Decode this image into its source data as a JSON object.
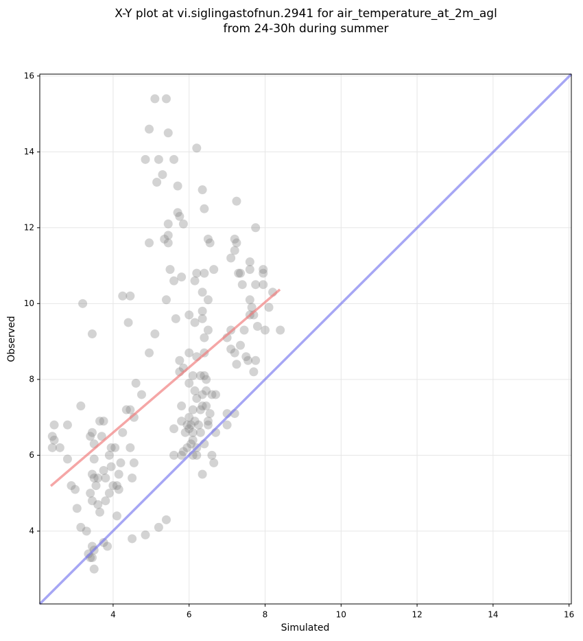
{
  "chart_data": {
    "type": "scatter",
    "title": [
      "X-Y plot at vi.siglingastofnun.2941 for air_temperature_at_2m_agl",
      "from 24-30h during summer"
    ],
    "x_label": "Simulated",
    "y_label": "Observed",
    "xlim": [
      2.07,
      16.06
    ],
    "ylim": [
      2.08,
      16.05
    ],
    "xticks": [
      4,
      6,
      8,
      10,
      12,
      14,
      16
    ],
    "yticks": [
      4,
      6,
      8,
      10,
      12,
      14,
      16
    ],
    "grid": true,
    "series": [
      {
        "color": "#808080",
        "x": [
          2.4,
          2.45,
          2.4,
          2.45,
          2.6,
          2.8,
          2.8,
          2.9,
          3.0,
          3.05,
          3.15,
          3.2,
          3.15,
          3.3,
          3.35,
          3.4,
          3.45,
          3.45,
          3.5,
          3.5,
          3.4,
          3.45,
          3.45,
          3.5,
          3.45,
          3.5,
          3.5,
          3.55,
          3.6,
          3.4,
          3.45,
          3.6,
          3.65,
          3.65,
          3.7,
          3.75,
          3.75,
          3.8,
          3.8,
          3.75,
          3.85,
          3.9,
          3.9,
          3.95,
          3.95,
          4.0,
          4.05,
          4.1,
          4.1,
          4.15,
          4.15,
          4.2,
          4.25,
          4.25,
          4.35,
          4.4,
          4.45,
          4.45,
          4.45,
          4.5,
          4.5,
          4.55,
          4.55,
          4.6,
          4.75,
          4.85,
          4.85,
          4.95,
          4.95,
          4.95,
          5.1,
          5.1,
          5.15,
          5.2,
          5.2,
          5.3,
          5.35,
          5.4,
          5.4,
          5.4,
          5.45,
          5.45,
          5.45,
          5.45,
          5.5,
          5.6,
          5.6,
          5.6,
          5.6,
          5.65,
          5.7,
          5.7,
          5.75,
          5.75,
          5.75,
          5.8,
          5.8,
          5.8,
          5.8,
          5.85,
          5.85,
          5.85,
          5.9,
          5.95,
          5.95,
          6.0,
          6.0,
          6.0,
          6.0,
          6.0,
          6.05,
          6.05,
          6.1,
          6.1,
          6.1,
          6.1,
          6.1,
          6.15,
          6.15,
          6.15,
          6.15,
          6.2,
          6.2,
          6.2,
          6.2,
          6.2,
          6.2,
          6.25,
          6.3,
          6.3,
          6.3,
          6.35,
          6.35,
          6.35,
          6.35,
          6.35,
          6.35,
          6.35,
          6.4,
          6.4,
          6.4,
          6.4,
          6.4,
          6.4,
          6.45,
          6.45,
          6.45,
          6.5,
          6.5,
          6.5,
          6.5,
          6.5,
          6.55,
          6.55,
          6.6,
          6.6,
          6.65,
          6.65,
          6.7,
          6.7,
          7.0,
          7.0,
          7.0,
          7.1,
          7.1,
          7.1,
          7.2,
          7.2,
          7.2,
          7.2,
          7.25,
          7.25,
          7.25,
          7.3,
          7.35,
          7.35,
          7.4,
          7.45,
          7.5,
          7.55,
          7.6,
          7.6,
          7.6,
          7.6,
          7.65,
          7.7,
          7.7,
          7.75,
          7.75,
          7.75,
          7.8,
          7.95,
          7.95,
          7.95,
          8.0,
          8.1,
          8.2,
          8.4
        ],
        "y": [
          6.5,
          6.4,
          6.2,
          6.8,
          6.2,
          6.8,
          5.9,
          5.2,
          5.1,
          4.6,
          7.3,
          10.0,
          4.1,
          4.0,
          3.4,
          3.3,
          3.3,
          3.6,
          3.5,
          3.0,
          6.5,
          9.2,
          6.6,
          6.3,
          5.5,
          5.9,
          5.4,
          5.2,
          5.4,
          5.0,
          4.8,
          4.7,
          4.5,
          6.9,
          6.5,
          6.9,
          5.6,
          5.4,
          4.8,
          3.7,
          3.6,
          6.0,
          5.0,
          5.7,
          6.2,
          5.2,
          6.2,
          5.2,
          4.4,
          5.5,
          5.1,
          5.8,
          6.6,
          10.2,
          7.2,
          9.5,
          10.2,
          7.2,
          6.2,
          5.4,
          3.8,
          5.8,
          7.0,
          7.9,
          7.6,
          3.9,
          13.8,
          14.6,
          11.6,
          8.7,
          15.4,
          9.2,
          13.2,
          13.8,
          4.1,
          13.4,
          11.7,
          15.4,
          10.1,
          4.3,
          14.5,
          12.1,
          11.8,
          11.6,
          10.9,
          13.8,
          10.6,
          6.7,
          6.0,
          9.6,
          13.1,
          12.4,
          12.3,
          8.5,
          8.2,
          10.7,
          7.3,
          6.9,
          6.0,
          12.1,
          8.3,
          6.1,
          6.6,
          6.2,
          6.8,
          9.7,
          8.7,
          7.9,
          7.0,
          6.7,
          6.8,
          6.3,
          8.1,
          7.2,
          6.6,
          6.4,
          6.0,
          10.6,
          9.5,
          7.7,
          6.9,
          14.1,
          10.8,
          8.6,
          7.5,
          6.2,
          6.0,
          6.8,
          8.1,
          7.2,
          6.6,
          13.0,
          10.3,
          9.8,
          9.6,
          7.6,
          7.3,
          5.5,
          12.5,
          10.8,
          9.1,
          8.7,
          8.1,
          6.3,
          8.0,
          7.7,
          7.3,
          11.7,
          10.1,
          9.3,
          6.9,
          6.8,
          11.6,
          7.1,
          7.6,
          6.0,
          10.9,
          5.8,
          7.6,
          6.6,
          9.1,
          7.1,
          6.8,
          11.2,
          9.3,
          8.8,
          11.7,
          11.4,
          8.7,
          7.1,
          12.7,
          11.6,
          8.4,
          10.8,
          10.8,
          8.9,
          10.5,
          9.3,
          8.6,
          8.5,
          11.1,
          10.9,
          10.1,
          9.7,
          9.9,
          9.7,
          8.2,
          12.0,
          10.5,
          8.5,
          9.4,
          10.9,
          10.8,
          10.5,
          9.3,
          9.9,
          10.3,
          9.3
        ]
      }
    ],
    "lines": [
      {
        "color": "#ef7777",
        "x": [
          2.36,
          8.39
        ],
        "y": [
          5.19,
          10.37
        ]
      },
      {
        "color": "#7777ee",
        "x": [
          2.07,
          16.06
        ],
        "y": [
          2.08,
          16.05
        ]
      }
    ]
  }
}
